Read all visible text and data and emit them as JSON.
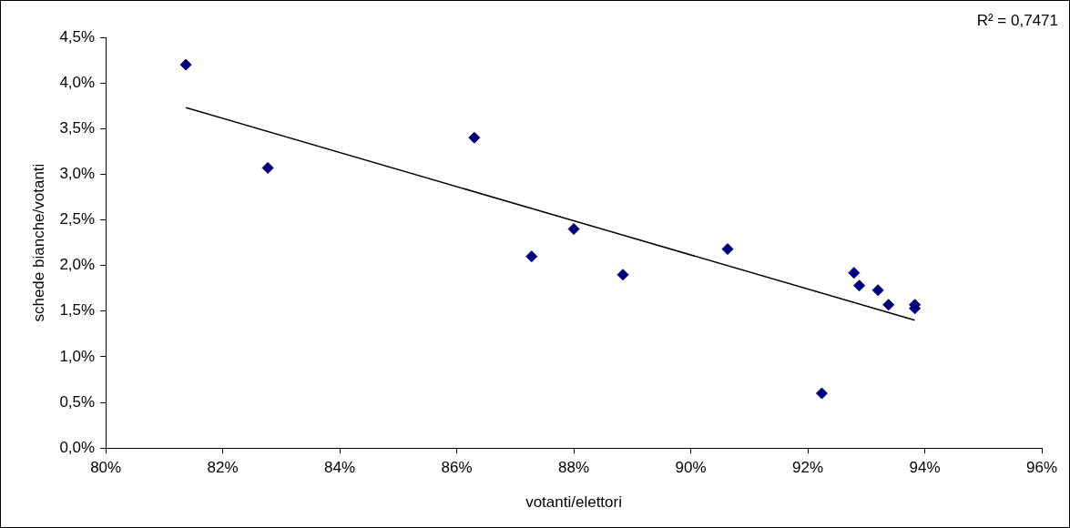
{
  "chart_data": {
    "type": "scatter",
    "xlabel": "votanti/elettori",
    "ylabel": "schede bianche/votanti",
    "annotations": [
      "R² = 0,7471"
    ],
    "series": [
      {
        "type": "scatter",
        "color": "#000080",
        "marker": "diamond",
        "x": [
          81.37,
          82.77,
          86.3,
          87.28,
          88.0,
          88.84,
          90.63,
          92.24,
          92.79,
          92.88,
          93.2,
          93.38,
          93.83,
          93.83
        ],
        "values": [
          4.2,
          3.07,
          3.4,
          2.1,
          2.4,
          1.9,
          2.18,
          0.6,
          1.92,
          1.78,
          1.73,
          1.57,
          1.53,
          1.57
        ]
      },
      {
        "type": "line",
        "color": "#000000",
        "marker": "none",
        "x": [
          81.37,
          93.83
        ],
        "values": [
          3.73,
          1.4
        ]
      }
    ],
    "xlim": [
      80,
      96
    ],
    "xticks": [
      {
        "value": 80,
        "label": "80%"
      },
      {
        "value": 82,
        "label": "82%"
      },
      {
        "value": 84,
        "label": "84%"
      },
      {
        "value": 86,
        "label": "86%"
      },
      {
        "value": 88,
        "label": "88%"
      },
      {
        "value": 90,
        "label": "90%"
      },
      {
        "value": 92,
        "label": "92%"
      },
      {
        "value": 94,
        "label": "94%"
      },
      {
        "value": 96,
        "label": "96%"
      }
    ],
    "ylim": [
      0,
      4.5
    ],
    "yticks": [
      {
        "value": 0,
        "label": "0,0%"
      },
      {
        "value": 0.5,
        "label": "0,5%"
      },
      {
        "value": 1,
        "label": "1,0%"
      },
      {
        "value": 1.5,
        "label": "1,5%"
      },
      {
        "value": 2,
        "label": "2,0%"
      },
      {
        "value": 2.5,
        "label": "2,5%"
      },
      {
        "value": 3,
        "label": "3,0%"
      },
      {
        "value": 3.5,
        "label": "3,5%"
      },
      {
        "value": 4,
        "label": "4,0%"
      },
      {
        "value": 4.5,
        "label": "4,5%"
      }
    ],
    "grid": false,
    "legend": false
  }
}
